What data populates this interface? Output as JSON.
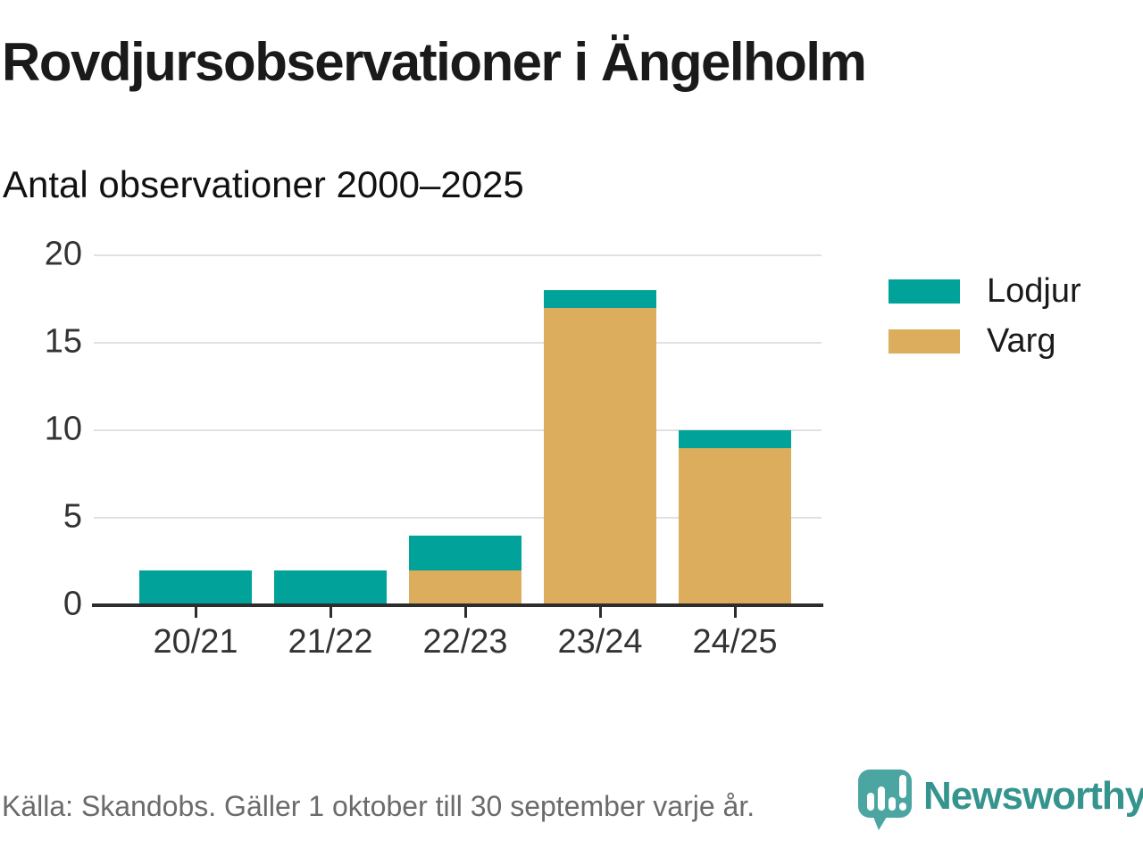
{
  "chart_data": {
    "type": "bar",
    "stacked": true,
    "title": "Rovdjursobservationer i Ängelholm",
    "subtitle": "Antal observationer 2000–2025",
    "categories": [
      "20/21",
      "21/22",
      "22/23",
      "23/24",
      "24/25"
    ],
    "series": [
      {
        "name": "Varg",
        "color": "#DBAD5C",
        "values": [
          0,
          0,
          2,
          17,
          9
        ]
      },
      {
        "name": "Lodjur",
        "color": "#00A29A",
        "values": [
          2,
          2,
          2,
          1,
          1
        ]
      }
    ],
    "totals": [
      2,
      2,
      4,
      18,
      10
    ],
    "y_ticks": [
      0,
      5,
      10,
      15,
      20
    ],
    "ylim": [
      0,
      20
    ],
    "xlabel": "",
    "ylabel": "",
    "grid": "horizontal",
    "grid_color": "#E1E1E1",
    "axis_color": "#2D2D2D",
    "tick_label_color": "#333333",
    "legend": {
      "position": "right",
      "items": [
        {
          "label": "Lodjur",
          "color": "#00A29A"
        },
        {
          "label": "Varg",
          "color": "#DBAD5C"
        }
      ]
    }
  },
  "footer": {
    "source": "Källa: Skandobs. Gäller 1 oktober till 30 september varje år.",
    "brand": {
      "name": "Newsworthy",
      "icon": "speech-bubble-bar-chart-icon",
      "text_color": "#35948E",
      "bubble_color": "#4BA5A1",
      "icon_bar_color": "#FFFFFF"
    }
  }
}
